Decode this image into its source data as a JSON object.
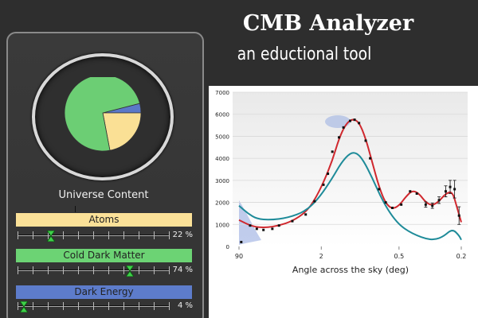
{
  "app": {
    "title": "CMB Analyzer",
    "subtitle": "an eductional tool"
  },
  "content_panel": {
    "title": "Universe Content",
    "pie": {
      "slices": [
        {
          "name": "Cold Dark Matter",
          "fraction": 0.74,
          "color": "#6cce74"
        },
        {
          "name": "Atoms",
          "fraction": 0.22,
          "color": "#fae095"
        },
        {
          "name": "Dark Energy",
          "fraction": 0.04,
          "color": "#5b78c8"
        }
      ]
    },
    "sliders": [
      {
        "label": "Atoms",
        "value_text": "22 %",
        "fraction": 0.22,
        "color": "#fbe198"
      },
      {
        "label": "Cold Dark Matter",
        "value_text": "74 %",
        "fraction": 0.74,
        "color": "#6cd374"
      },
      {
        "label": "Dark Energy",
        "value_text": "4 %",
        "fraction": 0.04,
        "color": "#5d7ccb"
      }
    ]
  },
  "chart_data": {
    "type": "line",
    "xlabel": "Angle across the sky (deg)",
    "x_ticks": [
      "90",
      "2",
      "0.5",
      "0.2"
    ],
    "y_ticks": [
      "0",
      "1000",
      "2000",
      "3000",
      "4000",
      "5000",
      "6000",
      "7000"
    ],
    "ylim": [
      0,
      7000
    ],
    "grid": true,
    "series": [
      {
        "color": "#d0282e",
        "points": [
          [
            0.0,
            1200
          ],
          [
            0.06,
            900
          ],
          [
            0.12,
            850
          ],
          [
            0.18,
            950
          ],
          [
            0.24,
            1150
          ],
          [
            0.3,
            1550
          ],
          [
            0.34,
            2100
          ],
          [
            0.38,
            2900
          ],
          [
            0.42,
            3900
          ],
          [
            0.45,
            4900
          ],
          [
            0.48,
            5550
          ],
          [
            0.51,
            5800
          ],
          [
            0.54,
            5650
          ],
          [
            0.57,
            4900
          ],
          [
            0.6,
            3800
          ],
          [
            0.63,
            2700
          ],
          [
            0.66,
            1950
          ],
          [
            0.69,
            1700
          ],
          [
            0.72,
            1850
          ],
          [
            0.75,
            2250
          ],
          [
            0.78,
            2550
          ],
          [
            0.81,
            2400
          ],
          [
            0.84,
            2000
          ],
          [
            0.87,
            1850
          ],
          [
            0.9,
            2050
          ],
          [
            0.93,
            2400
          ],
          [
            0.96,
            2500
          ],
          [
            0.98,
            1800
          ],
          [
            1.0,
            1100
          ]
        ]
      },
      {
        "color": "#1e8b99",
        "points": [
          [
            0.0,
            1850
          ],
          [
            0.04,
            1500
          ],
          [
            0.08,
            1250
          ],
          [
            0.14,
            1200
          ],
          [
            0.22,
            1300
          ],
          [
            0.3,
            1600
          ],
          [
            0.36,
            2200
          ],
          [
            0.42,
            3100
          ],
          [
            0.46,
            3800
          ],
          [
            0.5,
            4250
          ],
          [
            0.53,
            4250
          ],
          [
            0.56,
            3900
          ],
          [
            0.6,
            3100
          ],
          [
            0.64,
            2200
          ],
          [
            0.68,
            1500
          ],
          [
            0.72,
            1000
          ],
          [
            0.76,
            700
          ],
          [
            0.8,
            500
          ],
          [
            0.84,
            350
          ],
          [
            0.88,
            300
          ],
          [
            0.92,
            450
          ],
          [
            0.96,
            800
          ],
          [
            0.99,
            500
          ],
          [
            1.0,
            300
          ]
        ]
      }
    ],
    "measurements": [
      {
        "x": 0.01,
        "y": 200,
        "err": 80
      },
      {
        "x": 0.05,
        "y": 950,
        "err": 80
      },
      {
        "x": 0.08,
        "y": 800,
        "err": 80
      },
      {
        "x": 0.11,
        "y": 750,
        "err": 80
      },
      {
        "x": 0.15,
        "y": 800,
        "err": 80
      },
      {
        "x": 0.18,
        "y": 950,
        "err": 80
      },
      {
        "x": 0.24,
        "y": 1150,
        "err": 80
      },
      {
        "x": 0.3,
        "y": 1450,
        "err": 80
      },
      {
        "x": 0.34,
        "y": 2050,
        "err": 80
      },
      {
        "x": 0.38,
        "y": 2800,
        "err": 80
      },
      {
        "x": 0.4,
        "y": 3300,
        "err": 80
      },
      {
        "x": 0.42,
        "y": 4300,
        "err": 80
      },
      {
        "x": 0.45,
        "y": 4950,
        "err": 80
      },
      {
        "x": 0.47,
        "y": 5400,
        "err": 80
      },
      {
        "x": 0.5,
        "y": 5700,
        "err": 80
      },
      {
        "x": 0.52,
        "y": 5750,
        "err": 80
      },
      {
        "x": 0.54,
        "y": 5600,
        "err": 80
      },
      {
        "x": 0.57,
        "y": 4800,
        "err": 80
      },
      {
        "x": 0.59,
        "y": 4000,
        "err": 80
      },
      {
        "x": 0.63,
        "y": 2600,
        "err": 80
      },
      {
        "x": 0.66,
        "y": 2000,
        "err": 80
      },
      {
        "x": 0.69,
        "y": 1750,
        "err": 80
      },
      {
        "x": 0.73,
        "y": 1900,
        "err": 100
      },
      {
        "x": 0.77,
        "y": 2500,
        "err": 100
      },
      {
        "x": 0.8,
        "y": 2400,
        "err": 100
      },
      {
        "x": 0.84,
        "y": 1900,
        "err": 120
      },
      {
        "x": 0.87,
        "y": 1850,
        "err": 120
      },
      {
        "x": 0.9,
        "y": 2100,
        "err": 150
      },
      {
        "x": 0.93,
        "y": 2500,
        "err": 250
      },
      {
        "x": 0.95,
        "y": 2700,
        "err": 300
      },
      {
        "x": 0.97,
        "y": 2600,
        "err": 400
      },
      {
        "x": 0.99,
        "y": 1400,
        "err": 400
      }
    ]
  }
}
